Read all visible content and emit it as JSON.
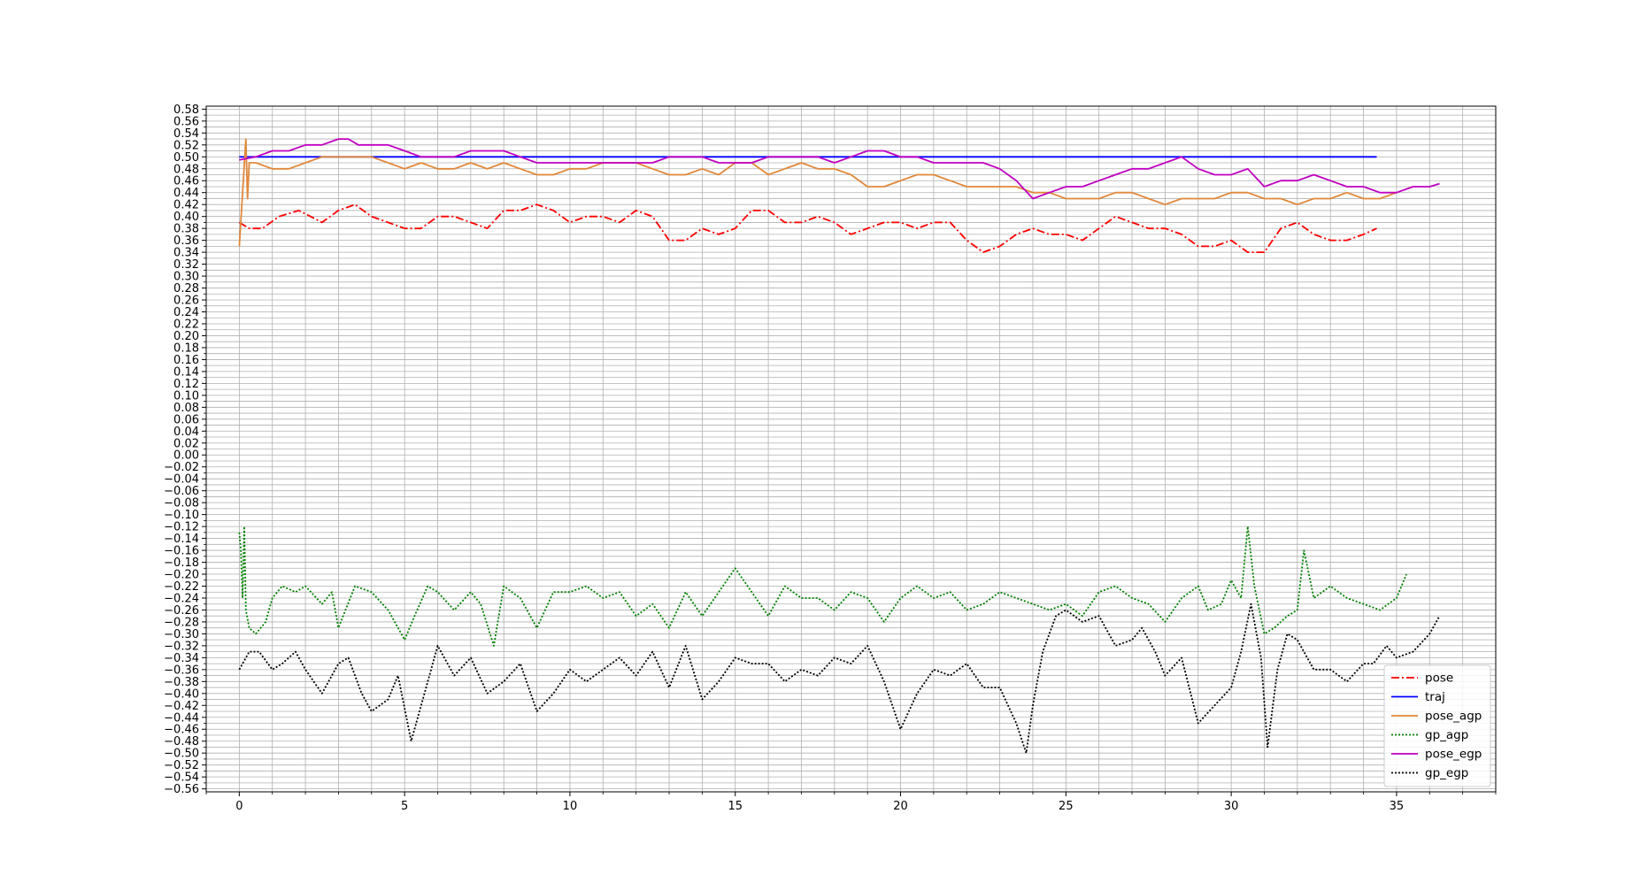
{
  "chart_data": {
    "type": "line",
    "title": "",
    "xlabel": "",
    "ylabel": "",
    "xlim": [
      -1.0,
      38.0
    ],
    "ylim": [
      -0.565,
      0.585
    ],
    "grid": true,
    "legend": {
      "placement": "lower-right"
    },
    "x_ticks": [
      "0",
      "5",
      "10",
      "15",
      "20",
      "25",
      "30",
      "35"
    ],
    "y_ticks": [
      "0.58",
      "0.56",
      "0.54",
      "0.52",
      "0.50",
      "0.48",
      "0.46",
      "0.44",
      "0.42",
      "0.40",
      "0.38",
      "0.36",
      "0.34",
      "0.32",
      "0.30",
      "0.28",
      "0.26",
      "0.24",
      "0.22",
      "0.20",
      "0.18",
      "0.16",
      "0.14",
      "0.12",
      "0.10",
      "0.08",
      "0.06",
      "0.04",
      "0.02",
      "0.00",
      "−0.02",
      "−0.04",
      "−0.06",
      "−0.08",
      "−0.10",
      "−0.12",
      "−0.14",
      "−0.16",
      "−0.18",
      "−0.20",
      "−0.22",
      "−0.24",
      "−0.26",
      "−0.28",
      "−0.30",
      "−0.32",
      "−0.34",
      "−0.36",
      "−0.38",
      "−0.40",
      "−0.42",
      "−0.44",
      "−0.46",
      "−0.48",
      "−0.50",
      "−0.52",
      "−0.54",
      "−0.56"
    ],
    "series": [
      {
        "name": "pose",
        "color": "#ff0000",
        "style": "dashdot",
        "x": [
          0,
          0.3,
          0.7,
          1.2,
          1.8,
          2.5,
          3.0,
          3.5,
          4.0,
          4.5,
          5.0,
          5.5,
          6.0,
          6.5,
          7.0,
          7.5,
          8.0,
          8.5,
          9.0,
          9.5,
          10.0,
          10.5,
          11.0,
          11.5,
          12.0,
          12.5,
          13.0,
          13.5,
          14.0,
          14.5,
          15.0,
          15.5,
          16.0,
          16.5,
          17.0,
          17.5,
          18.0,
          18.5,
          19.0,
          19.5,
          20.0,
          20.5,
          21.0,
          21.5,
          22.0,
          22.5,
          23.0,
          23.5,
          24.0,
          24.5,
          25.0,
          25.5,
          26.0,
          26.5,
          27.0,
          27.5,
          28.0,
          28.5,
          29.0,
          29.5,
          30.0,
          30.5,
          31.0,
          31.5,
          32.0,
          32.5,
          33.0,
          33.5,
          34.0,
          34.4
        ],
        "y": [
          0.39,
          0.38,
          0.38,
          0.4,
          0.41,
          0.39,
          0.41,
          0.42,
          0.4,
          0.39,
          0.38,
          0.38,
          0.4,
          0.4,
          0.39,
          0.38,
          0.41,
          0.41,
          0.42,
          0.41,
          0.39,
          0.4,
          0.4,
          0.39,
          0.41,
          0.4,
          0.36,
          0.36,
          0.38,
          0.37,
          0.38,
          0.41,
          0.41,
          0.39,
          0.39,
          0.4,
          0.39,
          0.37,
          0.38,
          0.39,
          0.39,
          0.38,
          0.39,
          0.39,
          0.36,
          0.34,
          0.35,
          0.37,
          0.38,
          0.37,
          0.37,
          0.36,
          0.38,
          0.4,
          0.39,
          0.38,
          0.38,
          0.37,
          0.35,
          0.35,
          0.36,
          0.34,
          0.34,
          0.38,
          0.39,
          0.37,
          0.36,
          0.36,
          0.37,
          0.38
        ]
      },
      {
        "name": "traj",
        "color": "#0000ff",
        "style": "solid",
        "x": [
          0,
          34.4
        ],
        "y": [
          0.5,
          0.5
        ]
      },
      {
        "name": "pose_agp",
        "color": "#e0883a",
        "style": "solid",
        "x": [
          0,
          0.1,
          0.2,
          0.25,
          0.3,
          0.5,
          1.0,
          1.5,
          2.0,
          2.5,
          3.0,
          3.5,
          4.0,
          4.5,
          5.0,
          5.5,
          6.0,
          6.5,
          7.0,
          7.5,
          8.0,
          8.5,
          9.0,
          9.5,
          10.0,
          10.5,
          11.0,
          11.5,
          12.0,
          12.5,
          13.0,
          13.5,
          14.0,
          14.5,
          15.0,
          15.5,
          16.0,
          16.5,
          17.0,
          17.5,
          18.0,
          18.5,
          19.0,
          19.5,
          20.0,
          20.5,
          21.0,
          21.5,
          22.0,
          22.5,
          23.0,
          23.5,
          24.0,
          24.5,
          25.0,
          25.5,
          26.0,
          26.5,
          27.0,
          27.5,
          28.0,
          28.5,
          29.0,
          29.5,
          30.0,
          30.5,
          31.0,
          31.5,
          32.0,
          32.5,
          33.0,
          33.5,
          34.0,
          34.5,
          35.0
        ],
        "y": [
          0.35,
          0.44,
          0.53,
          0.43,
          0.49,
          0.49,
          0.48,
          0.48,
          0.49,
          0.5,
          0.5,
          0.5,
          0.5,
          0.49,
          0.48,
          0.49,
          0.48,
          0.48,
          0.49,
          0.48,
          0.49,
          0.48,
          0.47,
          0.47,
          0.48,
          0.48,
          0.49,
          0.49,
          0.49,
          0.48,
          0.47,
          0.47,
          0.48,
          0.47,
          0.49,
          0.49,
          0.47,
          0.48,
          0.49,
          0.48,
          0.48,
          0.47,
          0.45,
          0.45,
          0.46,
          0.47,
          0.47,
          0.46,
          0.45,
          0.45,
          0.45,
          0.45,
          0.44,
          0.44,
          0.43,
          0.43,
          0.43,
          0.44,
          0.44,
          0.43,
          0.42,
          0.43,
          0.43,
          0.43,
          0.44,
          0.44,
          0.43,
          0.43,
          0.42,
          0.43,
          0.43,
          0.44,
          0.43,
          0.43,
          0.44
        ]
      },
      {
        "name": "gp_agp",
        "color": "#008000",
        "style": "dotted",
        "x": [
          0,
          0.05,
          0.1,
          0.15,
          0.2,
          0.3,
          0.5,
          0.8,
          1.0,
          1.3,
          1.7,
          2.0,
          2.5,
          2.8,
          3.0,
          3.5,
          4.0,
          4.5,
          5.0,
          5.3,
          5.7,
          6.0,
          6.5,
          7.0,
          7.3,
          7.7,
          8.0,
          8.5,
          9.0,
          9.5,
          10.0,
          10.5,
          11.0,
          11.5,
          12.0,
          12.5,
          13.0,
          13.5,
          14.0,
          14.5,
          15.0,
          15.5,
          16.0,
          16.5,
          17.0,
          17.5,
          18.0,
          18.5,
          19.0,
          19.5,
          20.0,
          20.5,
          21.0,
          21.5,
          22.0,
          22.5,
          23.0,
          23.5,
          24.0,
          24.5,
          25.0,
          25.5,
          26.0,
          26.5,
          27.0,
          27.5,
          28.0,
          28.5,
          29.0,
          29.3,
          29.7,
          30.0,
          30.3,
          30.5,
          30.7,
          31.0,
          31.3,
          31.7,
          32.0,
          32.2,
          32.5,
          33.0,
          33.5,
          34.0,
          34.5,
          35.0,
          35.3
        ],
        "y": [
          -0.13,
          -0.16,
          -0.24,
          -0.12,
          -0.26,
          -0.29,
          -0.3,
          -0.28,
          -0.24,
          -0.22,
          -0.23,
          -0.22,
          -0.25,
          -0.23,
          -0.29,
          -0.22,
          -0.23,
          -0.26,
          -0.31,
          -0.27,
          -0.22,
          -0.23,
          -0.26,
          -0.23,
          -0.25,
          -0.32,
          -0.22,
          -0.24,
          -0.29,
          -0.23,
          -0.23,
          -0.22,
          -0.24,
          -0.23,
          -0.27,
          -0.25,
          -0.29,
          -0.23,
          -0.27,
          -0.23,
          -0.19,
          -0.23,
          -0.27,
          -0.22,
          -0.24,
          -0.24,
          -0.26,
          -0.23,
          -0.24,
          -0.28,
          -0.24,
          -0.22,
          -0.24,
          -0.23,
          -0.26,
          -0.25,
          -0.23,
          -0.24,
          -0.25,
          -0.26,
          -0.25,
          -0.27,
          -0.23,
          -0.22,
          -0.24,
          -0.25,
          -0.28,
          -0.24,
          -0.22,
          -0.26,
          -0.25,
          -0.21,
          -0.24,
          -0.12,
          -0.22,
          -0.3,
          -0.29,
          -0.27,
          -0.26,
          -0.16,
          -0.24,
          -0.22,
          -0.24,
          -0.25,
          -0.26,
          -0.24,
          -0.2
        ]
      },
      {
        "name": "pose_egp",
        "color": "#c000c0",
        "style": "solid",
        "x": [
          0,
          0.5,
          1.0,
          1.5,
          2.0,
          2.5,
          3.0,
          3.3,
          3.6,
          4.0,
          4.5,
          5.0,
          5.5,
          6.0,
          6.5,
          7.0,
          7.5,
          8.0,
          8.5,
          9.0,
          9.5,
          10.0,
          10.5,
          11.0,
          11.5,
          12.0,
          12.5,
          13.0,
          13.5,
          14.0,
          14.5,
          15.0,
          15.5,
          16.0,
          16.5,
          17.0,
          17.5,
          18.0,
          18.5,
          19.0,
          19.5,
          20.0,
          20.5,
          21.0,
          21.5,
          22.0,
          22.5,
          23.0,
          23.5,
          24.0,
          24.5,
          25.0,
          25.5,
          26.0,
          26.5,
          27.0,
          27.5,
          28.0,
          28.5,
          29.0,
          29.5,
          30.0,
          30.5,
          31.0,
          31.5,
          32.0,
          32.5,
          33.0,
          33.5,
          34.0,
          34.5,
          35.0,
          35.5,
          36.0,
          36.3
        ],
        "y": [
          0.495,
          0.5,
          0.51,
          0.51,
          0.52,
          0.52,
          0.53,
          0.53,
          0.52,
          0.52,
          0.52,
          0.51,
          0.5,
          0.5,
          0.5,
          0.51,
          0.51,
          0.51,
          0.5,
          0.49,
          0.49,
          0.49,
          0.49,
          0.49,
          0.49,
          0.49,
          0.49,
          0.5,
          0.5,
          0.5,
          0.49,
          0.49,
          0.49,
          0.5,
          0.5,
          0.5,
          0.5,
          0.49,
          0.5,
          0.51,
          0.51,
          0.5,
          0.5,
          0.49,
          0.49,
          0.49,
          0.49,
          0.48,
          0.46,
          0.43,
          0.44,
          0.45,
          0.45,
          0.46,
          0.47,
          0.48,
          0.48,
          0.49,
          0.5,
          0.48,
          0.47,
          0.47,
          0.48,
          0.45,
          0.46,
          0.46,
          0.47,
          0.46,
          0.45,
          0.45,
          0.44,
          0.44,
          0.45,
          0.45,
          0.455
        ]
      },
      {
        "name": "gp_egp",
        "color": "#000000",
        "style": "dotted",
        "x": [
          0,
          0.3,
          0.6,
          1.0,
          1.3,
          1.7,
          2.0,
          2.5,
          3.0,
          3.3,
          3.7,
          4.0,
          4.5,
          4.8,
          5.2,
          5.6,
          6.0,
          6.5,
          7.0,
          7.5,
          8.0,
          8.5,
          9.0,
          9.5,
          10.0,
          10.5,
          11.0,
          11.5,
          12.0,
          12.5,
          13.0,
          13.5,
          14.0,
          14.5,
          15.0,
          15.5,
          16.0,
          16.5,
          17.0,
          17.5,
          18.0,
          18.5,
          19.0,
          19.5,
          20.0,
          20.5,
          21.0,
          21.5,
          22.0,
          22.5,
          23.0,
          23.5,
          23.8,
          24.0,
          24.3,
          24.7,
          25.0,
          25.5,
          26.0,
          26.5,
          27.0,
          27.3,
          27.7,
          28.0,
          28.5,
          29.0,
          29.5,
          30.0,
          30.3,
          30.6,
          30.9,
          31.1,
          31.4,
          31.7,
          32.0,
          32.5,
          33.0,
          33.5,
          34.0,
          34.3,
          34.7,
          35.0,
          35.5,
          36.0,
          36.3
        ],
        "y": [
          -0.36,
          -0.33,
          -0.33,
          -0.36,
          -0.35,
          -0.33,
          -0.36,
          -0.4,
          -0.35,
          -0.34,
          -0.4,
          -0.43,
          -0.41,
          -0.37,
          -0.48,
          -0.4,
          -0.32,
          -0.37,
          -0.34,
          -0.4,
          -0.38,
          -0.35,
          -0.43,
          -0.4,
          -0.36,
          -0.38,
          -0.36,
          -0.34,
          -0.37,
          -0.33,
          -0.39,
          -0.32,
          -0.41,
          -0.38,
          -0.34,
          -0.35,
          -0.35,
          -0.38,
          -0.36,
          -0.37,
          -0.34,
          -0.35,
          -0.32,
          -0.38,
          -0.46,
          -0.4,
          -0.36,
          -0.37,
          -0.35,
          -0.39,
          -0.39,
          -0.45,
          -0.5,
          -0.42,
          -0.33,
          -0.27,
          -0.26,
          -0.28,
          -0.27,
          -0.32,
          -0.31,
          -0.29,
          -0.33,
          -0.37,
          -0.34,
          -0.45,
          -0.42,
          -0.39,
          -0.33,
          -0.25,
          -0.34,
          -0.49,
          -0.36,
          -0.3,
          -0.31,
          -0.36,
          -0.36,
          -0.38,
          -0.35,
          -0.35,
          -0.32,
          -0.34,
          -0.33,
          -0.3,
          -0.27
        ]
      }
    ]
  }
}
